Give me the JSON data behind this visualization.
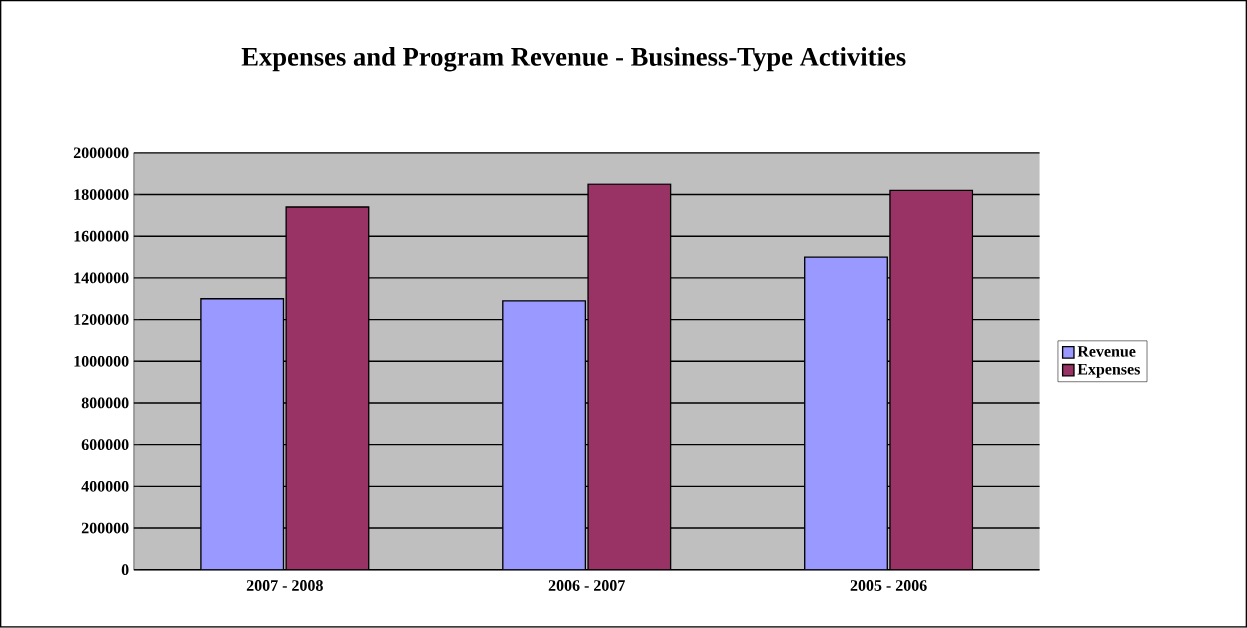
{
  "chart_data": {
    "type": "bar",
    "title": "Expenses and Program Revenue - Business-Type Activities",
    "categories": [
      "2007 - 2008",
      "2006 - 2007",
      "2005 - 2006"
    ],
    "series": [
      {
        "name": "Revenue",
        "color": "#9999ff",
        "values": [
          1300000,
          1290000,
          1500000
        ]
      },
      {
        "name": "Expenses",
        "color": "#993366",
        "values": [
          1740000,
          1850000,
          1820000
        ]
      }
    ],
    "ylim": [
      0,
      2000000
    ],
    "yticks": [
      0,
      200000,
      400000,
      600000,
      800000,
      1000000,
      1200000,
      1400000,
      1600000,
      1800000,
      2000000
    ],
    "grid": "y",
    "legend": "right"
  }
}
